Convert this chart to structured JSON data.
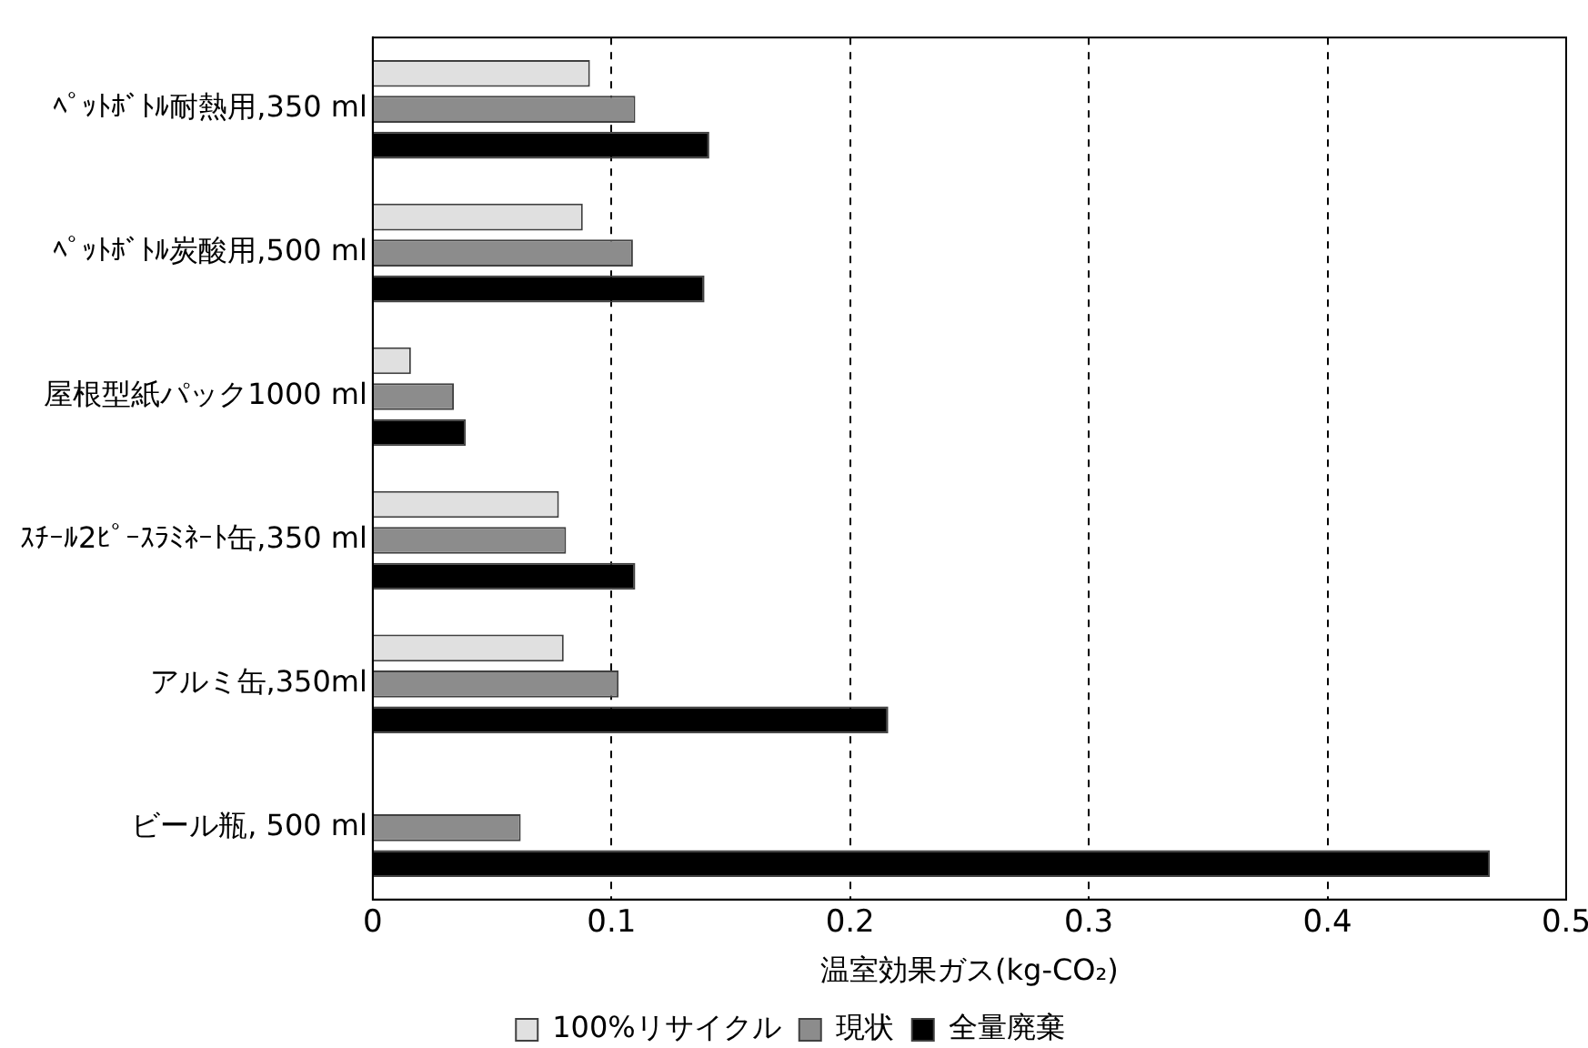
{
  "chart_data": {
    "type": "bar",
    "orientation": "horizontal",
    "xlabel": "温室効果ガス(kg-CO₂)",
    "categories": [
      "ﾍﾟｯﾄﾎﾞﾄﾙ耐熱用,350 ml",
      "ﾍﾟｯﾄﾎﾞﾄﾙ炭酸用,500 ml",
      "屋根型紙パック1000 ml",
      "ｽﾁｰﾙ2ﾋﾟｰｽﾗﾐﾈｰﾄ缶,350 ml",
      "アルミ缶,350ml",
      "ビール瓶, 500 ml"
    ],
    "series": [
      {
        "name": "100%リサイクル",
        "color": "#e0e0e0",
        "values": [
          0.091,
          0.088,
          0.016,
          0.078,
          0.08,
          null
        ]
      },
      {
        "name": "現状",
        "color": "#8c8c8c",
        "values": [
          0.11,
          0.109,
          0.034,
          0.081,
          0.103,
          0.062
        ]
      },
      {
        "name": "全量廃棄",
        "color": "#000000",
        "values": [
          0.141,
          0.139,
          0.039,
          0.11,
          0.216,
          0.468
        ]
      }
    ],
    "xlim": [
      0,
      0.5
    ],
    "xticks": [
      0,
      0.1,
      0.2,
      0.3,
      0.4,
      0.5
    ],
    "grid": "x",
    "line_style": "dashed",
    "legend": "bottom"
  }
}
